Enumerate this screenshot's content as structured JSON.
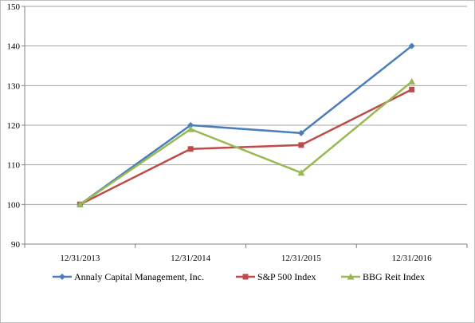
{
  "chart_data": {
    "type": "line",
    "title": "",
    "xlabel": "",
    "ylabel": "",
    "categories": [
      "12/31/2013",
      "12/31/2014",
      "12/31/2015",
      "12/31/2016"
    ],
    "ylim": [
      90,
      150
    ],
    "yticks": [
      "90",
      "100",
      "110",
      "120",
      "130",
      "140",
      "150"
    ],
    "grid": "horizontal",
    "legend": "bottom",
    "series": [
      {
        "name": "Annaly Capital Management, Inc.",
        "values": [
          100,
          120,
          118,
          140
        ],
        "color": "#4a7ebb",
        "marker": "diamond"
      },
      {
        "name": "S&P 500 Index",
        "values": [
          100,
          114,
          115,
          129
        ],
        "color": "#be4b48",
        "marker": "square"
      },
      {
        "name": "BBG Reit Index",
        "values": [
          100,
          119,
          108,
          131
        ],
        "color": "#98b954",
        "marker": "triangle"
      }
    ]
  }
}
